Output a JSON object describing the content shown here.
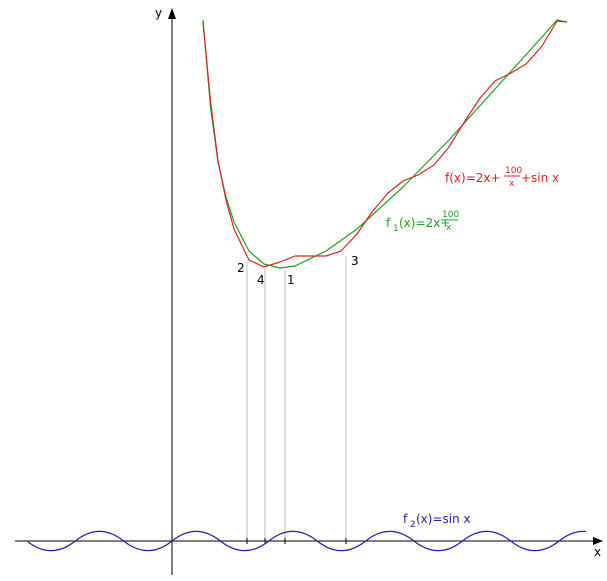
{
  "axes": {
    "x": "x",
    "y": "y"
  },
  "points": [
    "1",
    "2",
    "3",
    "4"
  ],
  "labels": {
    "f": {
      "name": "f(x)=2x+",
      "numerator": "100",
      "denominator": "x",
      "suffix": "+sin x"
    },
    "f1": {
      "name": "f",
      "subscript": "1",
      "rest": "(x)=2x+",
      "numerator": "100",
      "denominator": "x"
    },
    "f2": {
      "name": "f",
      "subscript": "2",
      "rest": "(x)=sin x"
    }
  }
}
